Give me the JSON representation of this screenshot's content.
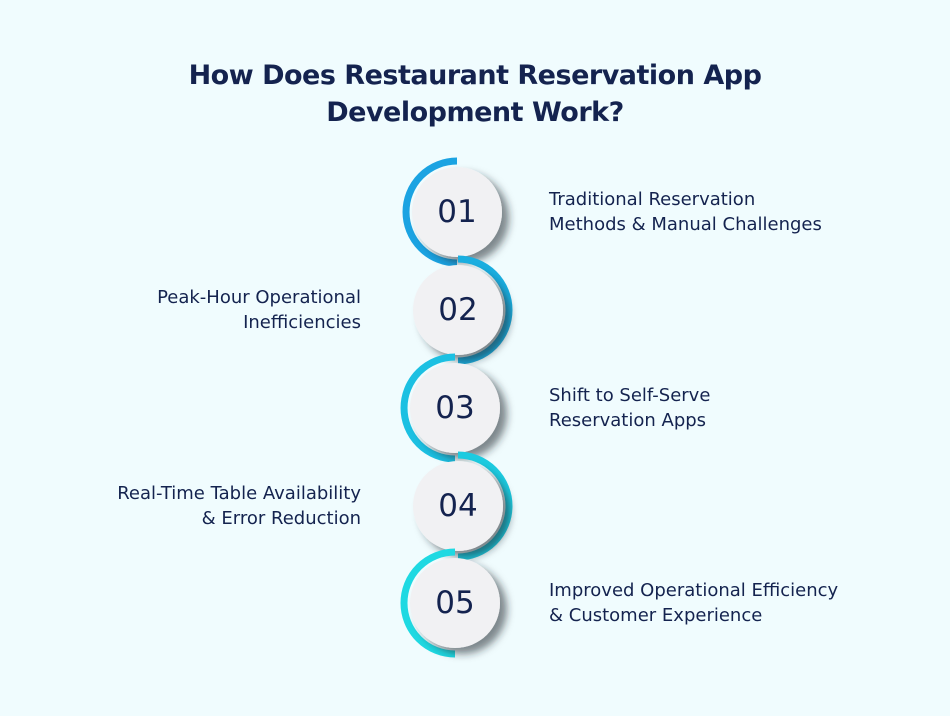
{
  "title": {
    "line1": "How Does Restaurant Reservation App",
    "line2": "Development Work?"
  },
  "steps": [
    {
      "number": "01",
      "line1": "Traditional Reservation",
      "line2": "Methods & Manual Challenges",
      "side": "right",
      "arc_color": "#1ba3e2"
    },
    {
      "number": "02",
      "line1": "Peak-Hour Operational",
      "line2": "Inefficiencies",
      "side": "left",
      "arc_color": "#1aaee0"
    },
    {
      "number": "03",
      "line1": "Shift to Self-Serve",
      "line2": "Reservation Apps",
      "side": "right",
      "arc_color": "#1cc0e2"
    },
    {
      "number": "04",
      "line1": "Real-Time Table Availability",
      "line2": "& Error Reduction",
      "side": "left",
      "arc_color": "#1ccbe0"
    },
    {
      "number": "05",
      "line1": "Improved Operational Efficiency",
      "line2": "& Customer Experience",
      "side": "right",
      "arc_color": "#1fd9e2"
    }
  ],
  "colors": {
    "background": "#f0fcfe",
    "text": "#14234f",
    "circle": "#f1f1f3"
  }
}
